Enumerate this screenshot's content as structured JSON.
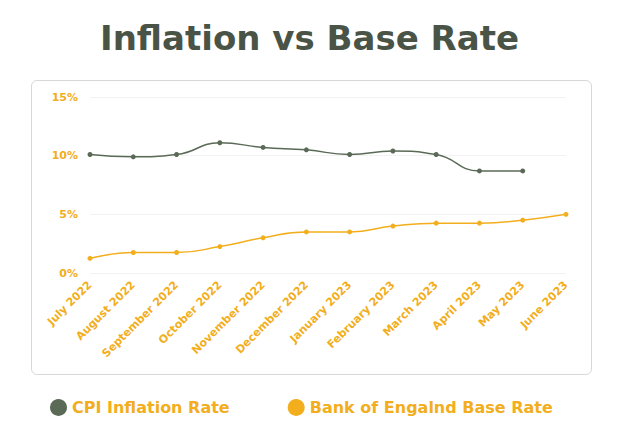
{
  "chart_data": {
    "type": "line",
    "title": "Inflation vs Base Rate",
    "categories": [
      "July 2022",
      "August 2022",
      "September 2022",
      "October 2022",
      "November 2022",
      "December 2022",
      "January 2023",
      "February 2023",
      "March 2023",
      "April 2023",
      "May 2023",
      "June 2023"
    ],
    "series": [
      {
        "name": "CPI Inflation Rate",
        "color": "#5b6a57",
        "marker": "circle",
        "line_style": "solid",
        "values": [
          10.1,
          9.9,
          10.1,
          11.1,
          10.7,
          10.5,
          10.1,
          10.4,
          10.1,
          8.7,
          8.7,
          null
        ]
      },
      {
        "name": "Bank of Engalnd Base Rate",
        "color": "#f2ae1c",
        "marker": "circle",
        "line_style": "solid",
        "values": [
          1.25,
          1.75,
          1.75,
          2.25,
          3.0,
          3.5,
          3.5,
          4.0,
          4.25,
          4.25,
          4.5,
          5.0
        ]
      }
    ],
    "ylim": [
      0,
      15
    ],
    "yticks": [
      {
        "value": 0,
        "label": "0%"
      },
      {
        "value": 5,
        "label": "5%"
      },
      {
        "value": 10,
        "label": "10%"
      },
      {
        "value": 15,
        "label": "15%"
      }
    ],
    "grid": true,
    "legend": "bottom"
  }
}
